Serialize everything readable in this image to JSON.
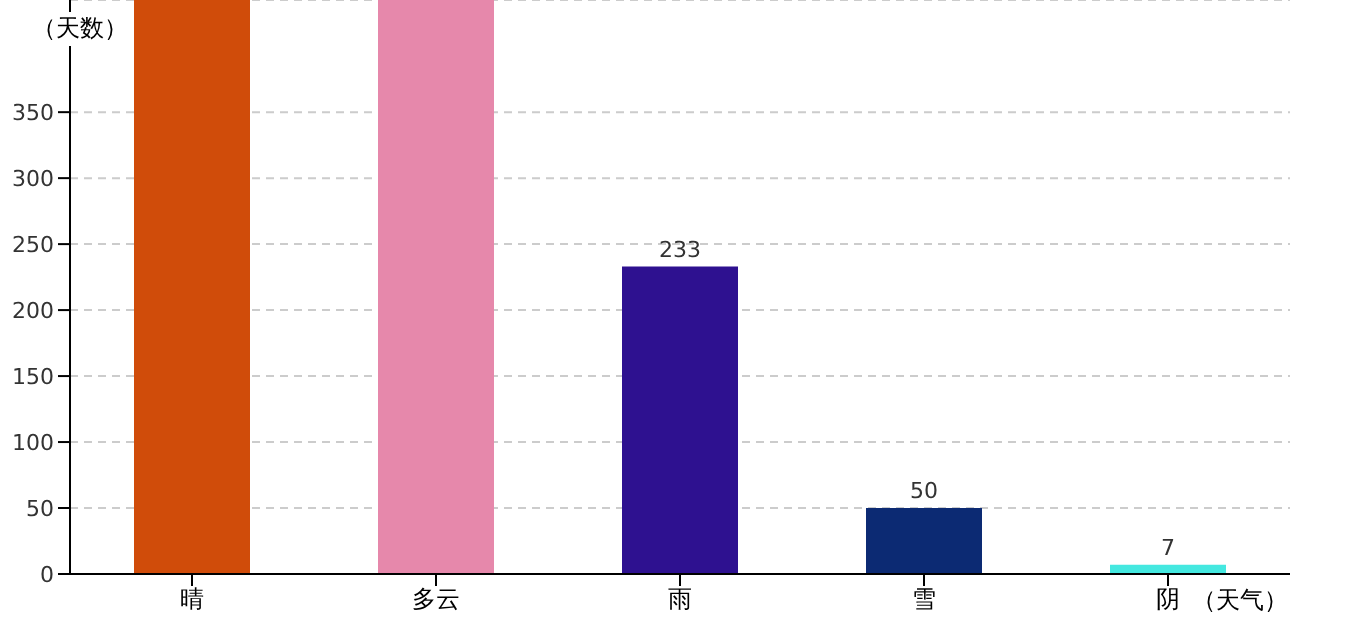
{
  "chart_data": {
    "type": "bar",
    "ylabel": "（天数）",
    "xlabel": "（天气）",
    "categories": [
      "晴",
      "多云",
      "雨",
      "雪",
      "阴"
    ],
    "values": [
      435,
      435,
      233,
      50,
      7
    ],
    "colors": [
      "#d04c0a",
      "#e688ab",
      "#2e1190",
      "#0c2a73",
      "#44e8e0"
    ],
    "value_labels": [
      null,
      null,
      "233",
      "50",
      "7"
    ],
    "ylim": [
      0,
      435
    ],
    "yticks": [
      0,
      50,
      100,
      150,
      200,
      250,
      300,
      350
    ],
    "grid": "y"
  }
}
